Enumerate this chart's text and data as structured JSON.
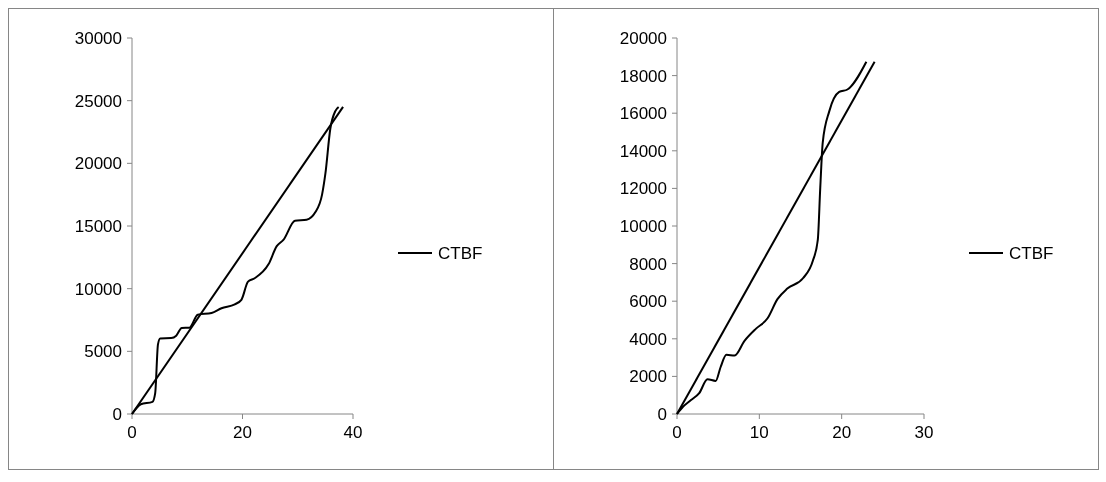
{
  "chart_data": [
    {
      "type": "line",
      "xlim": [
        0,
        40
      ],
      "xticks": [
        0,
        20,
        40
      ],
      "ylim": [
        0,
        30000
      ],
      "yticks": [
        0,
        5000,
        10000,
        15000,
        20000,
        25000,
        30000
      ],
      "legend": "right",
      "grid": false,
      "marker": "none",
      "series": [
        {
          "name": "CTBF",
          "color": "#000000",
          "x": [
            0,
            1.6,
            3.7,
            4.2,
            4.7,
            5.1,
            7.1,
            8,
            9,
            10.4,
            11.9,
            14.4,
            16.2,
            18.6,
            19.8,
            21,
            22.2,
            24.7,
            26.2,
            27.4,
            29.5,
            31.6,
            33.2,
            34.4,
            35,
            35.9,
            36.8,
            37.4
          ],
          "values": [
            0,
            780,
            970,
            1670,
            5560,
            6030,
            6060,
            6250,
            6860,
            6890,
            7920,
            8060,
            8440,
            8750,
            9110,
            10560,
            10830,
            11940,
            13390,
            13890,
            15420,
            15500,
            16110,
            17500,
            19170,
            22780,
            24170,
            24500
          ]
        },
        {
          "color": "#000000",
          "x": [
            0,
            38.2
          ],
          "values": [
            0,
            24500
          ]
        }
      ]
    },
    {
      "type": "line",
      "xlim": [
        0,
        30
      ],
      "xticks": [
        0,
        10,
        20,
        30
      ],
      "ylim": [
        0,
        20000
      ],
      "yticks": [
        0,
        2000,
        4000,
        6000,
        8000,
        10000,
        12000,
        14000,
        16000,
        18000,
        20000
      ],
      "legend": "right",
      "grid": false,
      "marker": "none",
      "series": [
        {
          "name": "CTBF",
          "color": "#000000",
          "x": [
            0,
            0.7,
            1.7,
            2.7,
            3.7,
            4.7,
            5.3,
            6,
            7,
            8.2,
            9.6,
            11,
            12.2,
            13.4,
            15.3,
            16.5,
            17.1,
            17.4,
            17.7,
            18.5,
            19.7,
            20.7,
            23
          ],
          "values": [
            0,
            370,
            740,
            1110,
            1850,
            1760,
            2500,
            3150,
            3110,
            3890,
            4540,
            5090,
            6110,
            6670,
            7220,
            8150,
            9260,
            12040,
            14440,
            16110,
            17130,
            17260,
            18740
          ]
        },
        {
          "color": "#000000",
          "x": [
            0,
            24
          ],
          "values": [
            0,
            18740
          ]
        }
      ]
    }
  ]
}
